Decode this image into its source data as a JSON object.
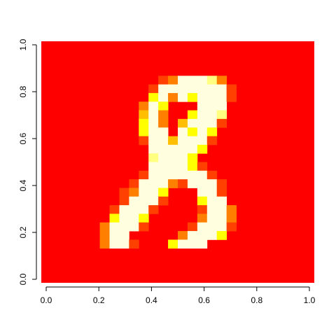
{
  "chart_data": {
    "type": "heatmap",
    "title": "",
    "xlabel": "",
    "ylabel": "",
    "xlim": [
      0,
      1
    ],
    "ylim": [
      0,
      1
    ],
    "grid": false,
    "legend": "none",
    "nrows": 28,
    "ncols": 28,
    "x_ticks": [
      0,
      0.2,
      0.4,
      0.6,
      0.8,
      1
    ],
    "y_ticks": [
      0,
      0.2,
      0.4,
      0.6,
      0.8,
      1
    ],
    "x_tick_labels": [
      "0.0",
      "0.2",
      "0.4",
      "0.6",
      "0.8",
      "1.0"
    ],
    "y_tick_labels": [
      "0.0",
      "0.2",
      "0.4",
      "0.6",
      "0.8",
      "1.0"
    ],
    "palette": [
      "#FF0000",
      "#FF4000",
      "#FF8000",
      "#FFBF00",
      "#FFFF00",
      "#FFFF80",
      "#FFFFE0"
    ],
    "background_level": 0,
    "note_levels": "levels index palette: 0 = red (low) ... 6 = pale yellow (high)",
    "rows_top_to_bottom": [
      "0000000000000000000000000000",
      "0000000000000000000000000000",
      "0000000000000000000000000000",
      "0000000000000000000000000000",
      "0000000000000000000000000000",
      "0000000000000000000000000000",
      "0000000000000000000000000000",
      "0000000000000000000000000000",
      "0000000000000000000000000000",
      "0000000000000000000000000000",
      "0000000000000000000000000000",
      "0000000000000000000000000000",
      "0000000000000000000000000000",
      "0000000000000000000000000000",
      "0000000000000000000000000000",
      "0000000000000000000000000000",
      "0000000000000000000000000000",
      "0000000000000000000000000000",
      "0000000000000000000000000000",
      "0000000000000000000000000000",
      "0000000000000000000000000000",
      "0000000000000000000000000000",
      "0000000000000000000000000000",
      "0000000000000000000000000000",
      "0000000000000000000000000000",
      "0000000000000000000000000000",
      "0000000000000000000000000000",
      "0000000000000000000000000000"
    ],
    "cells": [
      {
        "r": 4,
        "c": 12,
        "v": 1
      },
      {
        "r": 4,
        "c": 13,
        "v": 2
      },
      {
        "r": 4,
        "c": 14,
        "v": 6
      },
      {
        "r": 4,
        "c": 15,
        "v": 6
      },
      {
        "r": 4,
        "c": 16,
        "v": 6
      },
      {
        "r": 4,
        "c": 17,
        "v": 5
      },
      {
        "r": 4,
        "c": 18,
        "v": 2
      },
      {
        "r": 5,
        "c": 11,
        "v": 1
      },
      {
        "r": 5,
        "c": 12,
        "v": 6
      },
      {
        "r": 5,
        "c": 13,
        "v": 6
      },
      {
        "r": 5,
        "c": 14,
        "v": 6
      },
      {
        "r": 5,
        "c": 15,
        "v": 6
      },
      {
        "r": 5,
        "c": 16,
        "v": 6
      },
      {
        "r": 5,
        "c": 17,
        "v": 6
      },
      {
        "r": 5,
        "c": 18,
        "v": 6
      },
      {
        "r": 5,
        "c": 19,
        "v": 1
      },
      {
        "r": 6,
        "c": 11,
        "v": 4
      },
      {
        "r": 6,
        "c": 12,
        "v": 6
      },
      {
        "r": 6,
        "c": 13,
        "v": 2
      },
      {
        "r": 6,
        "c": 14,
        "v": 6
      },
      {
        "r": 6,
        "c": 15,
        "v": 4
      },
      {
        "r": 6,
        "c": 16,
        "v": 6
      },
      {
        "r": 6,
        "c": 17,
        "v": 6
      },
      {
        "r": 6,
        "c": 18,
        "v": 6
      },
      {
        "r": 6,
        "c": 19,
        "v": 1
      },
      {
        "r": 7,
        "c": 10,
        "v": 2
      },
      {
        "r": 7,
        "c": 11,
        "v": 6
      },
      {
        "r": 7,
        "c": 12,
        "v": 4
      },
      {
        "r": 7,
        "c": 13,
        "v": 0
      },
      {
        "r": 7,
        "c": 14,
        "v": 0
      },
      {
        "r": 7,
        "c": 15,
        "v": 0
      },
      {
        "r": 7,
        "c": 16,
        "v": 6
      },
      {
        "r": 7,
        "c": 17,
        "v": 6
      },
      {
        "r": 7,
        "c": 18,
        "v": 6
      },
      {
        "r": 8,
        "c": 10,
        "v": 3
      },
      {
        "r": 8,
        "c": 11,
        "v": 6
      },
      {
        "r": 8,
        "c": 12,
        "v": 2
      },
      {
        "r": 8,
        "c": 13,
        "v": 0
      },
      {
        "r": 8,
        "c": 14,
        "v": 0
      },
      {
        "r": 8,
        "c": 15,
        "v": 4
      },
      {
        "r": 8,
        "c": 16,
        "v": 6
      },
      {
        "r": 8,
        "c": 17,
        "v": 6
      },
      {
        "r": 8,
        "c": 18,
        "v": 5
      },
      {
        "r": 9,
        "c": 10,
        "v": 4
      },
      {
        "r": 9,
        "c": 11,
        "v": 6
      },
      {
        "r": 9,
        "c": 12,
        "v": 2
      },
      {
        "r": 9,
        "c": 13,
        "v": 0
      },
      {
        "r": 9,
        "c": 14,
        "v": 3
      },
      {
        "r": 9,
        "c": 15,
        "v": 6
      },
      {
        "r": 9,
        "c": 16,
        "v": 6
      },
      {
        "r": 9,
        "c": 17,
        "v": 6
      },
      {
        "r": 9,
        "c": 18,
        "v": 1
      },
      {
        "r": 10,
        "c": 10,
        "v": 4
      },
      {
        "r": 10,
        "c": 11,
        "v": 6
      },
      {
        "r": 10,
        "c": 12,
        "v": 6
      },
      {
        "r": 10,
        "c": 13,
        "v": 0
      },
      {
        "r": 10,
        "c": 14,
        "v": 6
      },
      {
        "r": 10,
        "c": 15,
        "v": 4
      },
      {
        "r": 10,
        "c": 16,
        "v": 6
      },
      {
        "r": 10,
        "c": 17,
        "v": 4
      },
      {
        "r": 11,
        "c": 10,
        "v": 1
      },
      {
        "r": 11,
        "c": 11,
        "v": 6
      },
      {
        "r": 11,
        "c": 12,
        "v": 6
      },
      {
        "r": 11,
        "c": 13,
        "v": 3
      },
      {
        "r": 11,
        "c": 14,
        "v": 6
      },
      {
        "r": 11,
        "c": 15,
        "v": 6
      },
      {
        "r": 11,
        "c": 16,
        "v": 6
      },
      {
        "r": 11,
        "c": 17,
        "v": 1
      },
      {
        "r": 12,
        "c": 11,
        "v": 6
      },
      {
        "r": 12,
        "c": 12,
        "v": 6
      },
      {
        "r": 12,
        "c": 13,
        "v": 6
      },
      {
        "r": 12,
        "c": 14,
        "v": 6
      },
      {
        "r": 12,
        "c": 15,
        "v": 6
      },
      {
        "r": 12,
        "c": 16,
        "v": 4
      },
      {
        "r": 13,
        "c": 11,
        "v": 5
      },
      {
        "r": 13,
        "c": 12,
        "v": 6
      },
      {
        "r": 13,
        "c": 13,
        "v": 6
      },
      {
        "r": 13,
        "c": 14,
        "v": 6
      },
      {
        "r": 13,
        "c": 15,
        "v": 4
      },
      {
        "r": 14,
        "c": 11,
        "v": 6
      },
      {
        "r": 14,
        "c": 12,
        "v": 6
      },
      {
        "r": 14,
        "c": 13,
        "v": 6
      },
      {
        "r": 14,
        "c": 14,
        "v": 6
      },
      {
        "r": 14,
        "c": 15,
        "v": 4
      },
      {
        "r": 14,
        "c": 16,
        "v": 1
      },
      {
        "r": 15,
        "c": 10,
        "v": 1
      },
      {
        "r": 15,
        "c": 11,
        "v": 6
      },
      {
        "r": 15,
        "c": 12,
        "v": 6
      },
      {
        "r": 15,
        "c": 13,
        "v": 6
      },
      {
        "r": 15,
        "c": 14,
        "v": 6
      },
      {
        "r": 15,
        "c": 15,
        "v": 6
      },
      {
        "r": 15,
        "c": 16,
        "v": 6
      },
      {
        "r": 15,
        "c": 17,
        "v": 1
      },
      {
        "r": 16,
        "c": 9,
        "v": 1
      },
      {
        "r": 16,
        "c": 10,
        "v": 6
      },
      {
        "r": 16,
        "c": 11,
        "v": 6
      },
      {
        "r": 16,
        "c": 12,
        "v": 6
      },
      {
        "r": 16,
        "c": 13,
        "v": 2
      },
      {
        "r": 16,
        "c": 14,
        "v": 1
      },
      {
        "r": 16,
        "c": 15,
        "v": 6
      },
      {
        "r": 16,
        "c": 16,
        "v": 6
      },
      {
        "r": 16,
        "c": 17,
        "v": 6
      },
      {
        "r": 16,
        "c": 18,
        "v": 1
      },
      {
        "r": 17,
        "c": 8,
        "v": 1
      },
      {
        "r": 17,
        "c": 9,
        "v": 2
      },
      {
        "r": 17,
        "c": 10,
        "v": 6
      },
      {
        "r": 17,
        "c": 11,
        "v": 6
      },
      {
        "r": 17,
        "c": 12,
        "v": 4
      },
      {
        "r": 17,
        "c": 16,
        "v": 6
      },
      {
        "r": 17,
        "c": 17,
        "v": 6
      },
      {
        "r": 17,
        "c": 18,
        "v": 1
      },
      {
        "r": 18,
        "c": 8,
        "v": 1
      },
      {
        "r": 18,
        "c": 9,
        "v": 6
      },
      {
        "r": 18,
        "c": 10,
        "v": 6
      },
      {
        "r": 18,
        "c": 11,
        "v": 6
      },
      {
        "r": 18,
        "c": 12,
        "v": 1
      },
      {
        "r": 18,
        "c": 16,
        "v": 4
      },
      {
        "r": 18,
        "c": 17,
        "v": 6
      },
      {
        "r": 18,
        "c": 18,
        "v": 6
      },
      {
        "r": 19,
        "c": 7,
        "v": 1
      },
      {
        "r": 19,
        "c": 8,
        "v": 6
      },
      {
        "r": 19,
        "c": 9,
        "v": 6
      },
      {
        "r": 19,
        "c": 10,
        "v": 6
      },
      {
        "r": 19,
        "c": 11,
        "v": 1
      },
      {
        "r": 19,
        "c": 16,
        "v": 1
      },
      {
        "r": 19,
        "c": 17,
        "v": 6
      },
      {
        "r": 19,
        "c": 18,
        "v": 6
      },
      {
        "r": 19,
        "c": 19,
        "v": 2
      },
      {
        "r": 20,
        "c": 7,
        "v": 4
      },
      {
        "r": 20,
        "c": 8,
        "v": 6
      },
      {
        "r": 20,
        "c": 9,
        "v": 6
      },
      {
        "r": 20,
        "c": 10,
        "v": 4
      },
      {
        "r": 20,
        "c": 16,
        "v": 2
      },
      {
        "r": 20,
        "c": 17,
        "v": 6
      },
      {
        "r": 20,
        "c": 18,
        "v": 6
      },
      {
        "r": 20,
        "c": 19,
        "v": 2
      },
      {
        "r": 21,
        "c": 6,
        "v": 2
      },
      {
        "r": 21,
        "c": 7,
        "v": 6
      },
      {
        "r": 21,
        "c": 8,
        "v": 6
      },
      {
        "r": 21,
        "c": 9,
        "v": 6
      },
      {
        "r": 21,
        "c": 10,
        "v": 1
      },
      {
        "r": 21,
        "c": 15,
        "v": 1
      },
      {
        "r": 21,
        "c": 16,
        "v": 6
      },
      {
        "r": 21,
        "c": 17,
        "v": 6
      },
      {
        "r": 21,
        "c": 18,
        "v": 6
      },
      {
        "r": 21,
        "c": 19,
        "v": 1
      },
      {
        "r": 22,
        "c": 6,
        "v": 2
      },
      {
        "r": 22,
        "c": 7,
        "v": 6
      },
      {
        "r": 22,
        "c": 8,
        "v": 6
      },
      {
        "r": 22,
        "c": 14,
        "v": 2
      },
      {
        "r": 22,
        "c": 15,
        "v": 6
      },
      {
        "r": 22,
        "c": 16,
        "v": 6
      },
      {
        "r": 22,
        "c": 17,
        "v": 6
      },
      {
        "r": 22,
        "c": 18,
        "v": 4
      },
      {
        "r": 23,
        "c": 6,
        "v": 2
      },
      {
        "r": 23,
        "c": 7,
        "v": 6
      },
      {
        "r": 23,
        "c": 8,
        "v": 6
      },
      {
        "r": 23,
        "c": 9,
        "v": 1
      },
      {
        "r": 23,
        "c": 13,
        "v": 4
      },
      {
        "r": 23,
        "c": 14,
        "v": 6
      },
      {
        "r": 23,
        "c": 15,
        "v": 6
      },
      {
        "r": 23,
        "c": 16,
        "v": 6
      }
    ]
  }
}
